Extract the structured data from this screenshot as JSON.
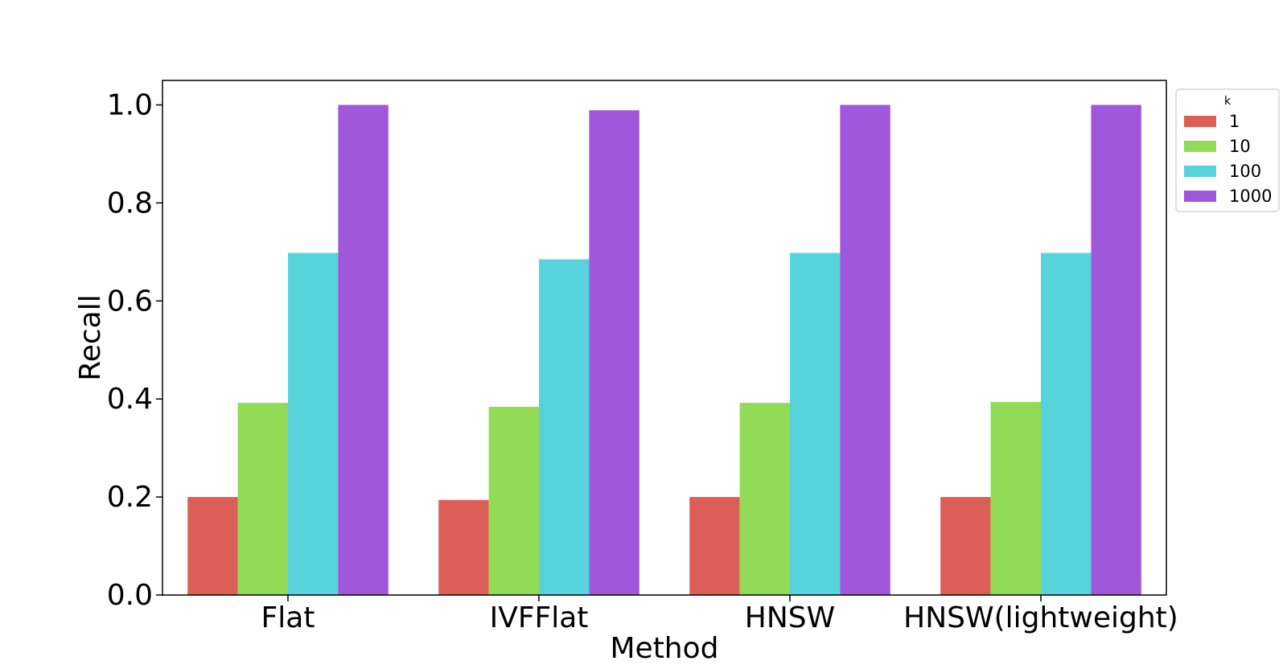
{
  "chart_data": {
    "type": "bar",
    "xlabel": "Method",
    "ylabel": "Recall",
    "categories": [
      "Flat",
      "IVFFlat",
      "HNSW",
      "HNSW(lightweight)"
    ],
    "ylim": [
      0,
      1.05
    ],
    "yticks": [
      "0.0",
      "0.2",
      "0.4",
      "0.6",
      "0.8",
      "1.0"
    ],
    "grid": false,
    "legend": {
      "title": "k",
      "placement": "outside-top-right"
    },
    "series": [
      {
        "name": "1",
        "color": "#db5f57",
        "values": [
          0.2,
          0.194,
          0.2,
          0.2
        ]
      },
      {
        "name": "10",
        "color": "#91db57",
        "values": [
          0.392,
          0.384,
          0.392,
          0.394
        ]
      },
      {
        "name": "100",
        "color": "#57d3db",
        "values": [
          0.698,
          0.685,
          0.698,
          0.698
        ]
      },
      {
        "name": "1000",
        "color": "#9f57db",
        "values": [
          1.0,
          0.989,
          1.0,
          1.0
        ]
      }
    ]
  }
}
